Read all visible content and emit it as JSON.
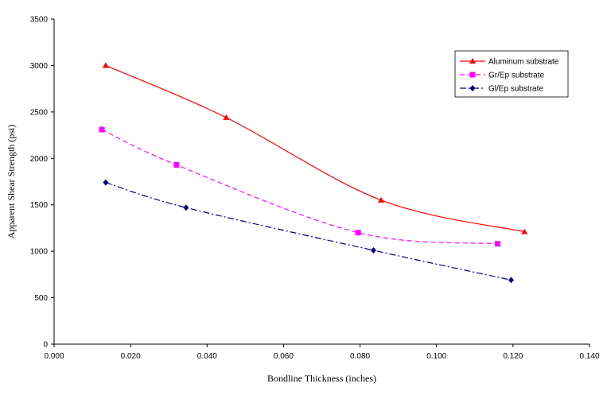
{
  "chart_data": {
    "type": "line",
    "title": "",
    "xlabel": "Bondline Thickness (inches)",
    "ylabel": "Apparent Shear Strength (psi)",
    "xlim": [
      0,
      0.14
    ],
    "ylim": [
      0,
      3500
    ],
    "x_ticks": [
      "0.000",
      "0.020",
      "0.040",
      "0.060",
      "0.080",
      "0.100",
      "0.120",
      "0.140"
    ],
    "y_ticks": [
      "0",
      "500",
      "1000",
      "1500",
      "2000",
      "2500",
      "3000",
      "3500"
    ],
    "grid": false,
    "legend_position": "top-right",
    "series": [
      {
        "name": "Aluminum substrate",
        "color": "#ff0000",
        "dash": "solid",
        "marker": "triangle",
        "x": [
          0.0135,
          0.045,
          0.0855,
          0.123
        ],
        "y": [
          3000,
          2440,
          1550,
          1210
        ]
      },
      {
        "name": "Gr/Ep substrate",
        "color": "#ff00ff",
        "dash": "dashed",
        "marker": "square",
        "x": [
          0.0125,
          0.032,
          0.0795,
          0.116
        ],
        "y": [
          2310,
          1930,
          1200,
          1080
        ]
      },
      {
        "name": "Gl/Ep substrate",
        "color": "#000080",
        "dash": "dashdot",
        "marker": "diamond",
        "x": [
          0.0135,
          0.0345,
          0.0835,
          0.1195
        ],
        "y": [
          1740,
          1470,
          1010,
          690
        ]
      }
    ]
  }
}
